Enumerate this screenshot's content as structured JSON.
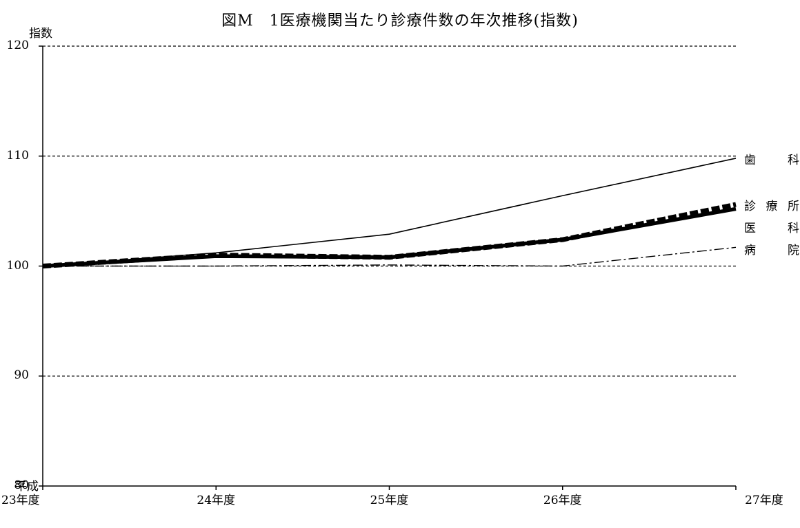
{
  "chart_data": {
    "type": "line",
    "title": "図M　1医療機関当たり診療件数の年次推移(指数)",
    "ylabel": "指数",
    "ylim": [
      80,
      120
    ],
    "yticks": [
      "80",
      "90",
      "100",
      "110",
      "120"
    ],
    "gridlines": "dashed-horizontal",
    "categories": [
      {
        "prefix": "平成",
        "label": "23年度"
      },
      {
        "prefix": "",
        "label": "24年度"
      },
      {
        "prefix": "",
        "label": "25年度"
      },
      {
        "prefix": "",
        "label": "26年度"
      },
      {
        "prefix": "",
        "label": "27年度"
      }
    ],
    "series": [
      {
        "name": "歯　科",
        "chars": [
          "歯",
          "科"
        ],
        "values": [
          100.0,
          101.2,
          102.9,
          106.4,
          109.8
        ],
        "style": "thin-solid",
        "color": "#000000"
      },
      {
        "name": "診療所",
        "chars": [
          "診",
          "療",
          "所"
        ],
        "values": [
          100.0,
          101.0,
          100.8,
          102.4,
          105.6
        ],
        "style": "thick-dashed",
        "color": "#000000"
      },
      {
        "name": "医　科",
        "chars": [
          "医",
          "科"
        ],
        "values": [
          100.0,
          100.9,
          100.8,
          102.4,
          105.2
        ],
        "style": "thick-solid",
        "color": "#000000"
      },
      {
        "name": "病　院",
        "chars": [
          "病",
          "院"
        ],
        "values": [
          100.0,
          100.0,
          100.1,
          100.0,
          101.7
        ],
        "style": "dash-dot",
        "color": "#000000"
      }
    ],
    "legend": "right-end-labels"
  }
}
